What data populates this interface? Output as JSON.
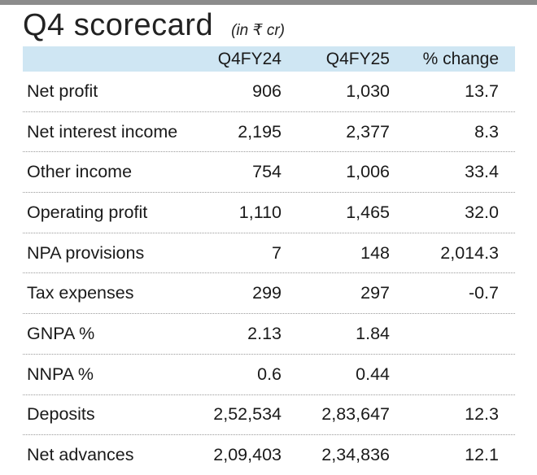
{
  "header": {
    "title": "Q4 scorecard",
    "subtitle": "(in ₹ cr)"
  },
  "chart_data": {
    "type": "table",
    "title": "Q4 scorecard",
    "subtitle": "(in ₹ cr)",
    "columns": [
      "",
      "Q4FY24",
      "Q4FY25",
      "% change"
    ],
    "rows": [
      [
        "Net profit",
        "906",
        "1,030",
        "13.7"
      ],
      [
        "Net interest income",
        "2,195",
        "2,377",
        "8.3"
      ],
      [
        "Other income",
        "754",
        "1,006",
        "33.4"
      ],
      [
        "Operating profit",
        "1,110",
        "1,465",
        "32.0"
      ],
      [
        "NPA provisions",
        "7",
        "148",
        "2,014.3"
      ],
      [
        "Tax expenses",
        "299",
        "297",
        "-0.7"
      ],
      [
        "GNPA %",
        "2.13",
        "1.84",
        ""
      ],
      [
        "NNPA %",
        "0.6",
        "0.44",
        ""
      ],
      [
        "Deposits",
        "2,52,534",
        "2,83,647",
        "12.3"
      ],
      [
        "Net advances",
        "2,09,403",
        "2,34,836",
        "12.1"
      ]
    ]
  },
  "colors": {
    "header_band": "#cfe6f3",
    "top_bar": "#8c8c8c"
  }
}
